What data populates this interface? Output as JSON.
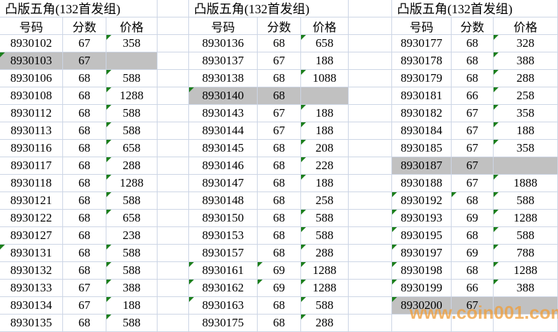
{
  "watermark": {
    "text": "www.coin001.com",
    "color": "#ef9f3e"
  },
  "colors": {
    "grid": "#ccd5e5",
    "highlight": "#c1c1c1",
    "triangle": "#1c7f1c"
  },
  "groups": [
    {
      "title": "凸版五角(132首发组)",
      "headers": [
        "号码",
        "分数",
        "价格"
      ],
      "rows": [
        {
          "num": "8930102",
          "score": "67",
          "price": "358",
          "tri": "p",
          "gray": false
        },
        {
          "num": "8930103",
          "score": "67",
          "price": "",
          "tri": "n",
          "gray": true
        },
        {
          "num": "8930106",
          "score": "68",
          "price": "588",
          "tri": "p",
          "gray": false
        },
        {
          "num": "8930108",
          "score": "68",
          "price": "1288",
          "tri": "p",
          "gray": false
        },
        {
          "num": "8930112",
          "score": "68",
          "price": "588",
          "tri": "p",
          "gray": false
        },
        {
          "num": "8930113",
          "score": "68",
          "price": "588",
          "tri": "p",
          "gray": false
        },
        {
          "num": "8930116",
          "score": "68",
          "price": "658",
          "tri": "p",
          "gray": false
        },
        {
          "num": "8930117",
          "score": "68",
          "price": "288",
          "tri": "p",
          "gray": false
        },
        {
          "num": "8930118",
          "score": "68",
          "price": "1288",
          "tri": "p",
          "gray": false
        },
        {
          "num": "8930121",
          "score": "68",
          "price": "588",
          "tri": "p",
          "gray": false
        },
        {
          "num": "8930122",
          "score": "68",
          "price": "658",
          "tri": "p",
          "gray": false
        },
        {
          "num": "8930127",
          "score": "68",
          "price": "238",
          "tri": "",
          "gray": false
        },
        {
          "num": "8930131",
          "score": "68",
          "price": "588",
          "tri": "np",
          "gray": false
        },
        {
          "num": "8930132",
          "score": "68",
          "price": "588",
          "tri": "p",
          "gray": false
        },
        {
          "num": "8930133",
          "score": "67",
          "price": "388",
          "tri": "p",
          "gray": false
        },
        {
          "num": "8930134",
          "score": "67",
          "price": "188",
          "tri": "p",
          "gray": false
        },
        {
          "num": "8930135",
          "score": "68",
          "price": "588",
          "tri": "p",
          "gray": false
        }
      ]
    },
    {
      "title": "凸版五角(132首发组)",
      "headers": [
        "号码",
        "分数",
        "价格"
      ],
      "rows": [
        {
          "num": "8930136",
          "score": "68",
          "price": "658",
          "tri": "p",
          "gray": false
        },
        {
          "num": "8930137",
          "score": "67",
          "price": "188",
          "tri": "",
          "gray": false
        },
        {
          "num": "8930138",
          "score": "68",
          "price": "1088",
          "tri": "p",
          "gray": false
        },
        {
          "num": "8930140",
          "score": "68",
          "price": "",
          "tri": "n",
          "gray": true
        },
        {
          "num": "8930143",
          "score": "67",
          "price": "188",
          "tri": "p",
          "gray": false
        },
        {
          "num": "8930144",
          "score": "67",
          "price": "188",
          "tri": "p",
          "gray": false
        },
        {
          "num": "8930145",
          "score": "68",
          "price": "208",
          "tri": "p",
          "gray": false
        },
        {
          "num": "8930146",
          "score": "68",
          "price": "228",
          "tri": "p",
          "gray": false
        },
        {
          "num": "8930147",
          "score": "68",
          "price": "188",
          "tri": "p",
          "gray": false
        },
        {
          "num": "8930148",
          "score": "68",
          "price": "258",
          "tri": "",
          "gray": false
        },
        {
          "num": "8930150",
          "score": "68",
          "price": "588",
          "tri": "p",
          "gray": false
        },
        {
          "num": "8930153",
          "score": "68",
          "price": "588",
          "tri": "p",
          "gray": false
        },
        {
          "num": "8930157",
          "score": "68",
          "price": "288",
          "tri": "p",
          "gray": false
        },
        {
          "num": "8930161",
          "score": "69",
          "price": "1288",
          "tri": "nsp",
          "gray": false
        },
        {
          "num": "8930162",
          "score": "69",
          "price": "1288",
          "tri": "nsp",
          "gray": false
        },
        {
          "num": "8930163",
          "score": "68",
          "price": "588",
          "tri": "np",
          "gray": false
        },
        {
          "num": "8930175",
          "score": "68",
          "price": "288",
          "tri": "p",
          "gray": false
        }
      ]
    },
    {
      "title": "凸版五角(132首发组)",
      "headers": [
        "号码",
        "分数",
        "价格"
      ],
      "rows": [
        {
          "num": "8930177",
          "score": "68",
          "price": "328",
          "tri": "p",
          "gray": false
        },
        {
          "num": "8930178",
          "score": "68",
          "price": "388",
          "tri": "p",
          "gray": false
        },
        {
          "num": "8930179",
          "score": "68",
          "price": "288",
          "tri": "p",
          "gray": false
        },
        {
          "num": "8930181",
          "score": "66",
          "price": "258",
          "tri": "p",
          "gray": false
        },
        {
          "num": "8930182",
          "score": "67",
          "price": "358",
          "tri": "p",
          "gray": false
        },
        {
          "num": "8930184",
          "score": "67",
          "price": "188",
          "tri": "p",
          "gray": false
        },
        {
          "num": "8930185",
          "score": "67",
          "price": "358",
          "tri": "p",
          "gray": false
        },
        {
          "num": "8930187",
          "score": "67",
          "price": "",
          "tri": "",
          "gray": true
        },
        {
          "num": "8930188",
          "score": "67",
          "price": "1888",
          "tri": "p",
          "gray": false
        },
        {
          "num": "8930192",
          "score": "68",
          "price": "588",
          "tri": "nsp",
          "gray": false
        },
        {
          "num": "8930193",
          "score": "69",
          "price": "1288",
          "tri": "np",
          "gray": false
        },
        {
          "num": "8930195",
          "score": "68",
          "price": "588",
          "tri": "np",
          "gray": false
        },
        {
          "num": "8930197",
          "score": "69",
          "price": "788",
          "tri": "np",
          "gray": false
        },
        {
          "num": "8930198",
          "score": "68",
          "price": "1288",
          "tri": "np",
          "gray": false
        },
        {
          "num": "8930199",
          "score": "66",
          "price": "388",
          "tri": "np",
          "gray": false
        },
        {
          "num": "8930200",
          "score": "67",
          "price": "",
          "tri": "n",
          "gray": true
        },
        {
          "num": "",
          "score": "",
          "price": "",
          "tri": "",
          "gray": false
        }
      ]
    }
  ]
}
